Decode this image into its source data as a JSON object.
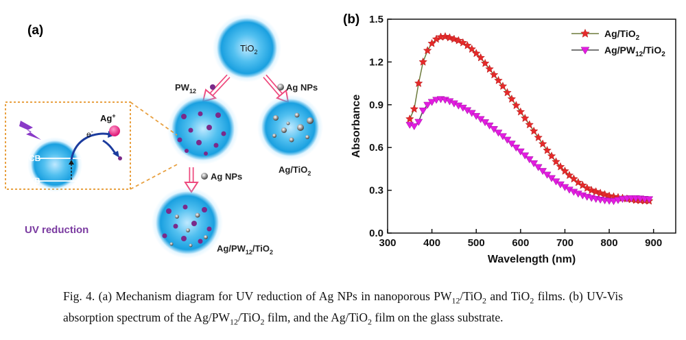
{
  "panel_a": {
    "label": "(a)",
    "tio2_label": "TiO",
    "tio2_sub": "2",
    "pw12_label": "PW",
    "pw12_sub": "12",
    "ag_nps_label": "Ag NPs",
    "ag_tio2_label": "Ag/TiO",
    "ag_tio2_sub": "2",
    "ag_pw12_tio2_part1": "Ag/PW",
    "ag_pw12_tio2_sub1": "12",
    "ag_pw12_tio2_part2": "/TiO",
    "ag_pw12_tio2_sub2": "2",
    "cb_label": "CB",
    "vb_label": "VB",
    "electron_label": "e",
    "electron_sup": "-",
    "ag_ion_label": "Ag",
    "ag_ion_sup": "+",
    "uv_reduction_label": "UV reduction",
    "colors": {
      "sphere": "#2aa8e4",
      "purple": "#7a2a8a",
      "orange_dash": "#e8a040",
      "arrow_pink": "#ee3380",
      "uv_purple": "#7a3aa0"
    }
  },
  "panel_b": {
    "label": "(b)",
    "legend_1_main": "Ag/TiO",
    "legend_1_sub": "2",
    "legend_2_main": "Ag/PW",
    "legend_2_sub": "12",
    "legend_2_main2": "/TiO",
    "legend_2_sub2": "2"
  },
  "chart_data": {
    "type": "line",
    "xlabel": "Wavelength (nm)",
    "ylabel": "Absorbance",
    "xlim": [
      300,
      950
    ],
    "ylim": [
      0.0,
      1.5
    ],
    "xticks": [
      300,
      400,
      500,
      600,
      700,
      800,
      900
    ],
    "yticks": [
      0.0,
      0.3,
      0.6,
      0.9,
      1.2,
      1.5
    ],
    "legend_position": "top-right",
    "series": [
      {
        "name": "Ag/TiO2",
        "color": "#6b7a3a",
        "marker_color": "#e52a2a",
        "marker": "star",
        "x": [
          350,
          360,
          370,
          380,
          390,
          400,
          410,
          420,
          430,
          440,
          450,
          460,
          470,
          480,
          490,
          500,
          510,
          520,
          530,
          540,
          550,
          560,
          570,
          580,
          590,
          600,
          610,
          620,
          630,
          640,
          650,
          660,
          670,
          680,
          690,
          700,
          710,
          720,
          730,
          740,
          750,
          760,
          770,
          780,
          790,
          800,
          810,
          820,
          830,
          840,
          850,
          860,
          870,
          880,
          890
        ],
        "y": [
          0.8,
          0.87,
          1.05,
          1.2,
          1.28,
          1.33,
          1.36,
          1.375,
          1.378,
          1.37,
          1.36,
          1.35,
          1.335,
          1.315,
          1.29,
          1.26,
          1.23,
          1.19,
          1.15,
          1.11,
          1.07,
          1.03,
          0.985,
          0.94,
          0.895,
          0.85,
          0.805,
          0.76,
          0.715,
          0.67,
          0.625,
          0.58,
          0.54,
          0.5,
          0.465,
          0.435,
          0.405,
          0.38,
          0.355,
          0.335,
          0.315,
          0.3,
          0.29,
          0.28,
          0.27,
          0.26,
          0.255,
          0.25,
          0.245,
          0.24,
          0.235,
          0.23,
          0.228,
          0.226,
          0.225
        ]
      },
      {
        "name": "Ag/PW12/TiO2",
        "color": "#4a4a4a",
        "marker_color": "#e21de0",
        "marker": "triangle-down",
        "x": [
          350,
          360,
          370,
          380,
          390,
          400,
          410,
          420,
          430,
          440,
          450,
          460,
          470,
          480,
          490,
          500,
          510,
          520,
          530,
          540,
          550,
          560,
          570,
          580,
          590,
          600,
          610,
          620,
          630,
          640,
          650,
          660,
          670,
          680,
          690,
          700,
          710,
          720,
          730,
          740,
          750,
          760,
          770,
          780,
          790,
          800,
          810,
          820,
          830,
          840,
          850,
          860,
          870,
          880,
          890
        ],
        "y": [
          0.76,
          0.75,
          0.78,
          0.86,
          0.9,
          0.92,
          0.935,
          0.94,
          0.935,
          0.925,
          0.91,
          0.895,
          0.88,
          0.862,
          0.843,
          0.822,
          0.8,
          0.778,
          0.755,
          0.73,
          0.705,
          0.68,
          0.655,
          0.628,
          0.6,
          0.573,
          0.545,
          0.518,
          0.49,
          0.463,
          0.436,
          0.41,
          0.386,
          0.363,
          0.342,
          0.323,
          0.305,
          0.29,
          0.277,
          0.265,
          0.255,
          0.247,
          0.24,
          0.235,
          0.23,
          0.227,
          0.225,
          0.232,
          0.24,
          0.243,
          0.245,
          0.245,
          0.243,
          0.24,
          0.238
        ]
      }
    ]
  },
  "caption": {
    "p1": "Fig. 4. (a) Mechanism diagram for UV reduction of Ag NPs in nanoporous PW",
    "p1_sub": "12",
    "p2": "/TiO",
    "p2_sub": "2",
    "p3": " and TiO",
    "p3_sub": "2",
    "p4": " films. (b) UV-Vis absorption spectrum of the Ag/PW",
    "p4_sub": "12",
    "p5": "/TiO",
    "p5_sub": "2",
    "p6": " film, and the Ag/TiO",
    "p6_sub": "2",
    "p7": " film on the glass substrate."
  }
}
